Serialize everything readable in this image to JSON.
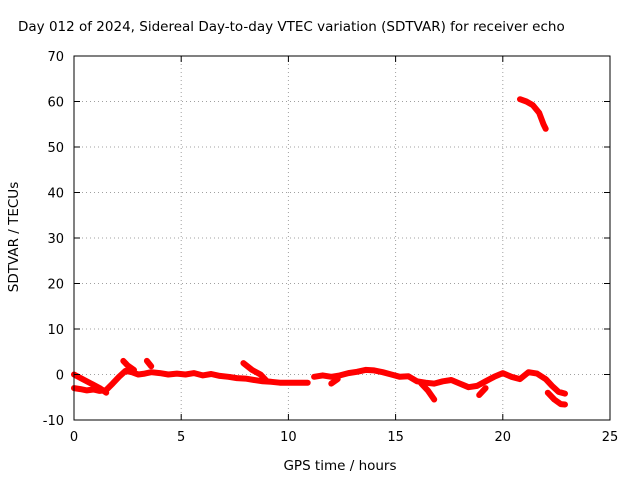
{
  "chart_data": {
    "type": "scatter",
    "title": "Day 012 of 2024, Sidereal Day-to-day VTEC variation (SDTVAR) for receiver echo",
    "xlabel": "GPS time / hours",
    "ylabel": "SDTVAR / TECUs",
    "xlim": [
      0,
      25
    ],
    "ylim": [
      -10,
      70
    ],
    "xticks": [
      "0",
      "5",
      "10",
      "15",
      "20",
      "25"
    ],
    "yticks": [
      "-10",
      "0",
      "10",
      "20",
      "30",
      "40",
      "50",
      "60",
      "70"
    ],
    "grid": true,
    "series": [
      {
        "name": "SDTVAR",
        "color": "#ff0000",
        "segments": [
          [
            [
              0.0,
              -3.0
            ],
            [
              0.3,
              -3.2
            ],
            [
              0.6,
              -3.5
            ],
            [
              0.9,
              -3.3
            ],
            [
              1.2,
              -3.6
            ],
            [
              1.5,
              -3.4
            ],
            [
              1.8,
              -2.0
            ],
            [
              2.1,
              -0.5
            ],
            [
              2.4,
              0.8
            ],
            [
              2.7,
              0.5
            ],
            [
              3.0,
              0.0
            ],
            [
              3.3,
              0.2
            ],
            [
              3.6,
              0.5
            ],
            [
              4.0,
              0.3
            ],
            [
              4.4,
              0.0
            ],
            [
              4.8,
              0.2
            ],
            [
              5.2,
              0.0
            ],
            [
              5.6,
              0.3
            ],
            [
              6.0,
              -0.2
            ],
            [
              6.4,
              0.1
            ],
            [
              6.8,
              -0.3
            ],
            [
              7.2,
              -0.5
            ],
            [
              7.6,
              -0.8
            ],
            [
              8.0,
              -0.9
            ],
            [
              8.4,
              -1.2
            ],
            [
              8.8,
              -1.5
            ],
            [
              9.2,
              -1.6
            ],
            [
              9.6,
              -1.8
            ],
            [
              10.0,
              -1.8
            ],
            [
              10.4,
              -1.8
            ],
            [
              10.9,
              -1.8
            ]
          ],
          [
            [
              0.0,
              0.0
            ],
            [
              0.4,
              -1.0
            ],
            [
              0.8,
              -2.0
            ],
            [
              1.2,
              -3.0
            ],
            [
              1.5,
              -4.0
            ]
          ],
          [
            [
              2.3,
              3.0
            ],
            [
              2.5,
              2.0
            ],
            [
              2.8,
              1.0
            ]
          ],
          [
            [
              3.4,
              3.0
            ],
            [
              3.6,
              1.8
            ]
          ],
          [
            [
              7.9,
              2.5
            ],
            [
              8.3,
              1.0
            ],
            [
              8.7,
              0.0
            ],
            [
              9.0,
              -1.5
            ]
          ],
          [
            [
              11.2,
              -0.5
            ],
            [
              11.6,
              -0.2
            ],
            [
              12.0,
              -0.5
            ],
            [
              12.4,
              -0.2
            ],
            [
              12.8,
              0.3
            ],
            [
              13.2,
              0.6
            ],
            [
              13.6,
              1.0
            ],
            [
              14.0,
              0.9
            ],
            [
              14.4,
              0.5
            ],
            [
              14.8,
              0.0
            ],
            [
              15.2,
              -0.5
            ],
            [
              15.6,
              -0.4
            ],
            [
              16.0,
              -1.5
            ],
            [
              16.4,
              -1.8
            ],
            [
              16.8,
              -2.0
            ],
            [
              17.2,
              -1.5
            ],
            [
              17.6,
              -1.2
            ],
            [
              18.0,
              -2.0
            ],
            [
              18.4,
              -2.8
            ],
            [
              18.8,
              -2.5
            ],
            [
              19.2,
              -1.5
            ],
            [
              19.6,
              -0.5
            ],
            [
              20.0,
              0.3
            ],
            [
              20.4,
              -0.5
            ],
            [
              20.8,
              -1.0
            ],
            [
              21.2,
              0.5
            ],
            [
              21.6,
              0.2
            ],
            [
              22.0,
              -1.0
            ],
            [
              22.3,
              -2.5
            ],
            [
              22.6,
              -3.8
            ],
            [
              22.9,
              -4.2
            ]
          ],
          [
            [
              12.0,
              -2.0
            ],
            [
              12.3,
              -1.0
            ]
          ],
          [
            [
              16.2,
              -2.0
            ],
            [
              16.5,
              -3.5
            ],
            [
              16.8,
              -5.5
            ]
          ],
          [
            [
              18.9,
              -4.5
            ],
            [
              19.2,
              -3.0
            ]
          ],
          [
            [
              22.1,
              -4.0
            ],
            [
              22.4,
              -5.5
            ],
            [
              22.7,
              -6.5
            ],
            [
              22.9,
              -6.6
            ]
          ],
          [
            [
              20.8,
              60.5
            ],
            [
              21.1,
              60.0
            ],
            [
              21.4,
              59.2
            ],
            [
              21.7,
              57.5
            ],
            [
              21.9,
              55.0
            ],
            [
              22.0,
              54.0
            ]
          ]
        ]
      }
    ]
  }
}
